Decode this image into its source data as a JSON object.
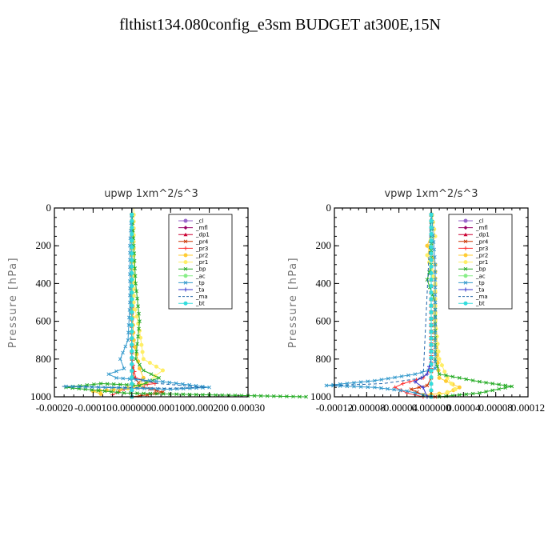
{
  "title": "flthist134.080config_e3sm  BUDGET at300E,15N",
  "legend_labels": [
    "_cl",
    "_mfl",
    "_dp1",
    "_pr4",
    "_pr3",
    "_pr2",
    "_pr1",
    "_bp",
    "_ac",
    "_tp",
    "_ta",
    "_ma",
    "_bt"
  ],
  "series_colors": [
    "#9966cc",
    "#990066",
    "#cc0033",
    "#cc3300",
    "#ff3333",
    "#ffcc33",
    "#ffee66",
    "#22aa22",
    "#88ee88",
    "#3399cc",
    "#3333cc",
    "#2266aa",
    "#33dddd"
  ],
  "chart_data": [
    {
      "type": "line",
      "title": "upwp   1xm^2/s^3",
      "ylabel": "Pressure [hPa]",
      "xlim": [
        -0.0002,
        0.0003
      ],
      "ylim": [
        1000,
        0
      ],
      "x_ticks": [
        "-0.00020",
        "-0.00010",
        "0.000000",
        "0.000100",
        "0.000200",
        "0.00030"
      ],
      "y_ticks": [
        "0",
        "200",
        "400",
        "600",
        "800",
        "1000"
      ],
      "series": [
        {
          "name": "_cl",
          "points": [
            [
              0,
              1000
            ],
            [
              0,
              0
            ]
          ]
        },
        {
          "name": "_mfl",
          "points": [
            [
              0,
              1000
            ],
            [
              0,
              0
            ]
          ]
        },
        {
          "name": "_dp1",
          "points": [
            [
              0,
              1000
            ],
            [
              0,
              0
            ]
          ]
        },
        {
          "name": "_pr4",
          "points": [
            [
              0,
              1000
            ],
            [
              4e-05,
              990
            ],
            [
              8e-05,
              975
            ],
            [
              3e-05,
              950
            ],
            [
              5e-06,
              900
            ],
            [
              0,
              800
            ],
            [
              0,
              0
            ]
          ]
        },
        {
          "name": "_pr3",
          "points": [
            [
              -5e-05,
              990
            ],
            [
              -2e-05,
              960
            ],
            [
              2e-05,
              940
            ],
            [
              6e-05,
              930
            ],
            [
              1e-05,
              900
            ],
            [
              0,
              800
            ],
            [
              0,
              0
            ]
          ]
        },
        {
          "name": "_pr2",
          "points": [
            [
              -8e-05,
              985
            ],
            [
              -0.0001,
              970
            ],
            [
              -3e-05,
              960
            ],
            [
              1e-05,
              950
            ],
            [
              3e-05,
              900
            ],
            [
              2e-05,
              850
            ],
            [
              5e-06,
              700
            ],
            [
              0,
              500
            ],
            [
              0,
              0
            ]
          ]
        },
        {
          "name": "_pr1",
          "points": [
            [
              1e-05,
              950
            ],
            [
              4e-05,
              920
            ],
            [
              8e-05,
              860
            ],
            [
              3e-05,
              800
            ],
            [
              2e-05,
              650
            ],
            [
              5e-06,
              500
            ],
            [
              5e-06,
              0
            ]
          ]
        },
        {
          "name": "_bp",
          "points": [
            [
              0.00045,
              1000
            ],
            [
              0.0002,
              990
            ],
            [
              -2e-05,
              980
            ],
            [
              -0.00017,
              950
            ],
            [
              -8e-05,
              930
            ],
            [
              2e-05,
              940
            ],
            [
              7e-05,
              900
            ],
            [
              3e-05,
              860
            ],
            [
              1e-05,
              800
            ],
            [
              2e-05,
              600
            ],
            [
              1e-05,
              400
            ],
            [
              5e-06,
              200
            ],
            [
              0,
              0
            ]
          ]
        },
        {
          "name": "_ac",
          "points": [
            [
              0,
              1000
            ],
            [
              0,
              0
            ]
          ]
        },
        {
          "name": "_tp",
          "points": [
            [
              -0.00017,
              945
            ],
            [
              0.0001,
              960
            ],
            [
              0.0002,
              950
            ],
            [
              8e-05,
              920
            ],
            [
              -4e-05,
              900
            ],
            [
              -6e-05,
              880
            ],
            [
              -2e-05,
              850
            ],
            [
              -3e-05,
              800
            ],
            [
              -1e-05,
              700
            ],
            [
              -5e-06,
              500
            ],
            [
              -5e-06,
              200
            ],
            [
              0,
              0
            ]
          ]
        },
        {
          "name": "_ta",
          "points": [
            [
              0,
              1000
            ],
            [
              0,
              0
            ]
          ]
        },
        {
          "name": "_ma",
          "points": [
            [
              -0.00018,
              945
            ],
            [
              9e-05,
              955
            ],
            [
              0.00019,
              950
            ],
            [
              7e-05,
              930
            ],
            [
              0,
              900
            ],
            [
              0,
              0
            ]
          ]
        },
        {
          "name": "_bt",
          "points": [
            [
              0,
              1000
            ],
            [
              0,
              0
            ]
          ]
        }
      ]
    },
    {
      "type": "line",
      "title": "vpwp   1xm^2/s^3",
      "ylabel": "Pressure [hPa]",
      "xlim": [
        -0.00012,
        0.00012
      ],
      "ylim": [
        1000,
        0
      ],
      "x_ticks": [
        "-0.00012",
        "-0.00008",
        "-0.00004",
        "0.000000",
        "0.00004",
        "0.00008",
        "0.00012"
      ],
      "y_ticks": [
        "0",
        "200",
        "400",
        "600",
        "800",
        "1000"
      ],
      "series": [
        {
          "name": "_cl",
          "points": [
            [
              0,
              1000
            ],
            [
              0,
              0
            ]
          ]
        },
        {
          "name": "_mfl",
          "points": [
            [
              0,
              1000
            ],
            [
              0,
              0
            ]
          ]
        },
        {
          "name": "_dp1",
          "points": [
            [
              0,
              1000
            ],
            [
              0,
              0
            ]
          ]
        },
        {
          "name": "_pr4",
          "points": [
            [
              5e-06,
              1000
            ],
            [
              -1e-05,
              990
            ],
            [
              -2.5e-05,
              960
            ],
            [
              -5e-06,
              940
            ],
            [
              0,
              900
            ],
            [
              0,
              0
            ]
          ]
        },
        {
          "name": "_pr3",
          "points": [
            [
              -1e-05,
              1000
            ],
            [
              -3e-05,
              980
            ],
            [
              -4.5e-05,
              950
            ],
            [
              -3.5e-05,
              930
            ],
            [
              -1e-05,
              900
            ],
            [
              0,
              850
            ],
            [
              0,
              0
            ]
          ]
        },
        {
          "name": "_pr2",
          "points": [
            [
              -1e-05,
              990
            ],
            [
              2e-05,
              980
            ],
            [
              3.5e-05,
              950
            ],
            [
              1e-05,
              900
            ],
            [
              5e-06,
              700
            ],
            [
              5e-06,
              300
            ],
            [
              -5e-06,
              200
            ],
            [
              0,
              140
            ],
            [
              0,
              0
            ]
          ]
        },
        {
          "name": "_pr1",
          "points": [
            [
              1e-05,
              990
            ],
            [
              3e-05,
              960
            ],
            [
              2e-05,
              900
            ],
            [
              1e-05,
              800
            ],
            [
              5e-06,
              600
            ],
            [
              5e-06,
              400
            ],
            [
              -5e-06,
              250
            ],
            [
              5e-06,
              150
            ],
            [
              0,
              0
            ]
          ]
        },
        {
          "name": "_bp",
          "points": [
            [
              1e-05,
              1000
            ],
            [
              6e-05,
              980
            ],
            [
              0.0001,
              945
            ],
            [
              6e-05,
              920
            ],
            [
              1e-05,
              880
            ],
            [
              5e-06,
              800
            ],
            [
              5e-06,
              500
            ],
            [
              -5e-06,
              380
            ],
            [
              0,
              300
            ],
            [
              0,
              0
            ]
          ]
        },
        {
          "name": "_ac",
          "points": [
            [
              0,
              1000
            ],
            [
              0,
              0
            ]
          ]
        },
        {
          "name": "_tp",
          "points": [
            [
              0,
              1000
            ],
            [
              -3e-05,
              970
            ],
            [
              -7e-05,
              950
            ],
            [
              -0.00013,
              940
            ],
            [
              -7e-05,
              915
            ],
            [
              -2e-05,
              880
            ],
            [
              5e-06,
              850
            ],
            [
              5e-06,
              700
            ],
            [
              5e-06,
              500
            ],
            [
              5e-06,
              300
            ],
            [
              3e-06,
              180
            ],
            [
              0,
              0
            ]
          ]
        },
        {
          "name": "_ta",
          "points": [
            [
              -5e-06,
              1000
            ],
            [
              -1e-05,
              950
            ],
            [
              -2e-05,
              920
            ],
            [
              -5e-06,
              880
            ],
            [
              0,
              800
            ],
            [
              0,
              0
            ]
          ]
        },
        {
          "name": "_ma",
          "points": [
            [
              -0.00012,
              940
            ],
            [
              -6e-05,
              930
            ],
            [
              -1e-05,
              900
            ],
            [
              0,
              0
            ]
          ]
        },
        {
          "name": "_bt",
          "points": [
            [
              0,
              1000
            ],
            [
              0,
              0
            ]
          ]
        }
      ]
    }
  ]
}
